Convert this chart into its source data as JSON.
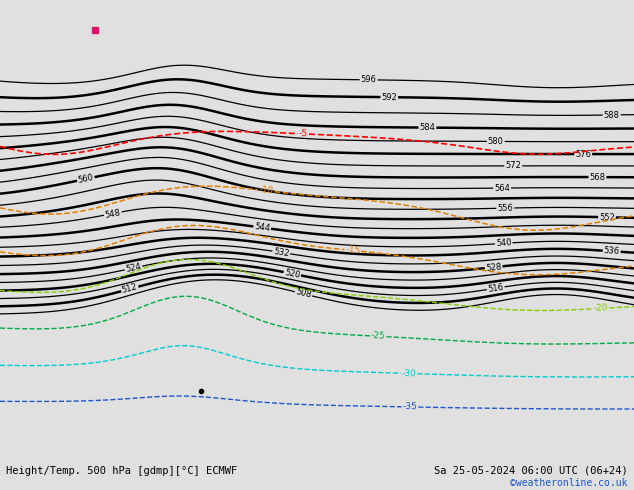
{
  "title": "Height/Temp. 500 hPa [gdmp][°C] ECMWF",
  "date_label": "Sa 25-05-2024 06:00 UTC (06+24)",
  "credit": "©weatheronline.co.uk",
  "bg_color": "#e0e0e0",
  "land_color": "#b5dba0",
  "ocean_color": "#e0e0e0",
  "border_color": "#888888",
  "fig_width": 6.34,
  "fig_height": 4.9,
  "dpi": 100,
  "lon_min": -100,
  "lon_max": 20,
  "lat_min": -62,
  "lat_max": 15
}
